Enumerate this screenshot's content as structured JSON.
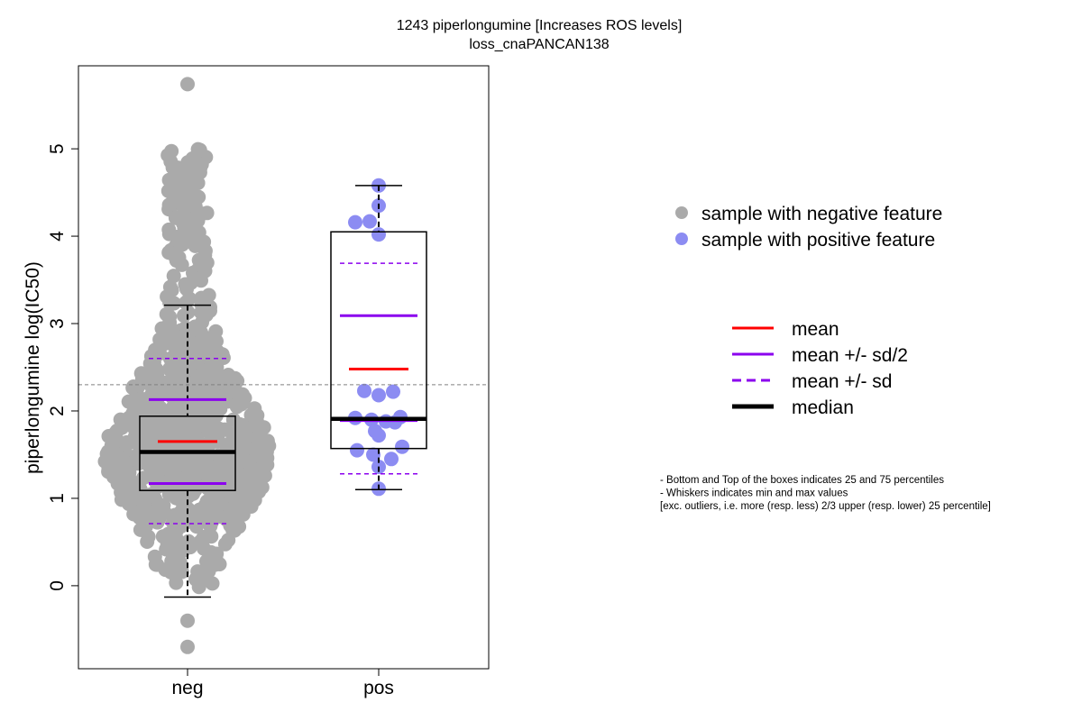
{
  "chart_data": {
    "type": "boxplot",
    "title": "1243 piperlongumine [Increases ROS levels]",
    "subtitle": "loss_cnaPANCAN138",
    "ylabel": "piperlongumine log(IC50)",
    "xlabel": "",
    "categories": [
      "neg",
      "pos"
    ],
    "ylim": [
      -0.95,
      5.95
    ],
    "yticks": [
      0,
      1,
      2,
      3,
      4,
      5
    ],
    "reference_line": 2.3,
    "colors": {
      "neg_points": "#aaaaaa",
      "pos_points": "#8c8cf2",
      "mean": "#ff0000",
      "sd": "#8b00ee",
      "median": "#000000",
      "reference_line": "#808080"
    },
    "groups": [
      {
        "name": "neg",
        "min": -0.13,
        "q1": 1.09,
        "median": 1.53,
        "q3": 1.94,
        "max": 3.21,
        "mean": 1.65,
        "sd_half_low": 1.17,
        "sd_half_high": 2.13,
        "sd_low": 0.71,
        "sd_high": 2.6,
        "outliers": [
          -0.4,
          -0.7,
          5.74
        ],
        "n_points": 900
      },
      {
        "name": "pos",
        "min": 1.1,
        "q1": 1.57,
        "median": 1.91,
        "q3": 4.05,
        "max": 4.58,
        "mean": 2.48,
        "sd_half_low": 1.89,
        "sd_half_high": 3.09,
        "sd_low": 1.28,
        "sd_high": 3.69,
        "points": [
          4.58,
          4.35,
          4.16,
          4.17,
          4.02,
          2.23,
          2.18,
          2.22,
          1.92,
          1.9,
          1.88,
          1.93,
          1.87,
          1.77,
          1.72,
          1.59,
          1.55,
          1.5,
          1.45,
          1.36,
          1.11
        ]
      }
    ],
    "legend_points": [
      {
        "label": "sample with negative feature",
        "color": "#aaaaaa"
      },
      {
        "label": "sample with positive feature",
        "color": "#8c8cf2"
      }
    ],
    "legend_lines": [
      {
        "label": "mean",
        "color": "#ff0000",
        "style": "solid"
      },
      {
        "label": "mean +/- sd/2",
        "color": "#8b00ee",
        "style": "solid"
      },
      {
        "label": "mean +/- sd",
        "color": "#8b00ee",
        "style": "dashed"
      },
      {
        "label": "median",
        "color": "#000000",
        "style": "thick"
      }
    ],
    "notes": [
      "- Bottom and Top of the boxes indicates 25 and 75 percentiles",
      "- Whiskers indicates min and max values",
      "[exc. outliers, i.e. more (resp. less) 2/3 upper (resp. lower) 25 percentile]"
    ]
  }
}
